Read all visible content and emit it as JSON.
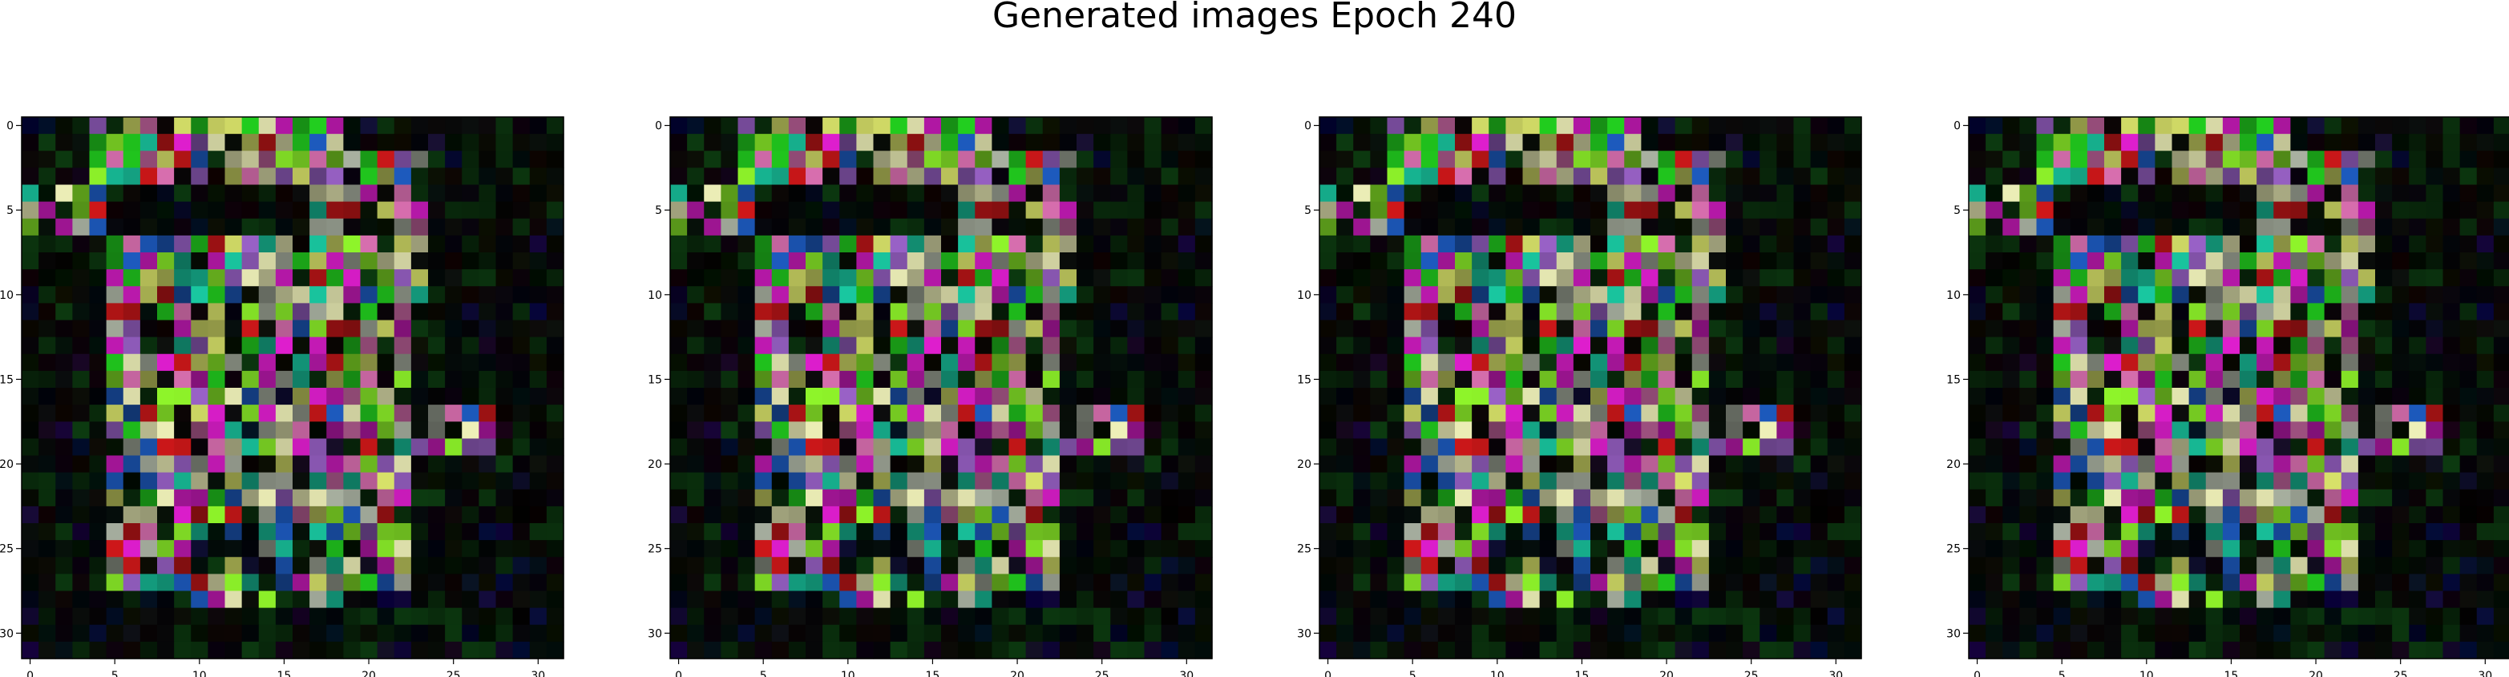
{
  "figure": {
    "title": "Generated images Epoch 240"
  },
  "chart_data": {
    "type": "heatmap",
    "title": "Generated images Epoch 240",
    "grid_size": [
      32,
      32
    ],
    "xlim": [
      -0.5,
      31.5
    ],
    "ylim": [
      31.5,
      -0.5
    ],
    "x_ticks": [
      0,
      5,
      10,
      15,
      20,
      25,
      30
    ],
    "y_ticks": [
      0,
      5,
      10,
      15,
      20,
      25,
      30
    ],
    "x_tick_labels": [
      "0",
      "5",
      "10",
      "15",
      "20",
      "25",
      "30"
    ],
    "y_tick_labels": [
      "0",
      "5",
      "10",
      "15",
      "20",
      "25",
      "30"
    ],
    "grid": false,
    "panels": 4,
    "palette": {
      "background": "#000000",
      "green": "#22d11f",
      "lime": "#8ff52a",
      "pink": "#d96fb0",
      "magenta": "#e11ed0",
      "violet": "#9a62c8",
      "cream": "#eef0b8",
      "yellow": "#d9e36a",
      "red": "#d4181a",
      "blue": "#1d5bc0",
      "teal": "#19c7a0",
      "navy": "#1a1ad0",
      "gray": "#a8b0a0",
      "darkgreen": "#0c3a10"
    }
  }
}
